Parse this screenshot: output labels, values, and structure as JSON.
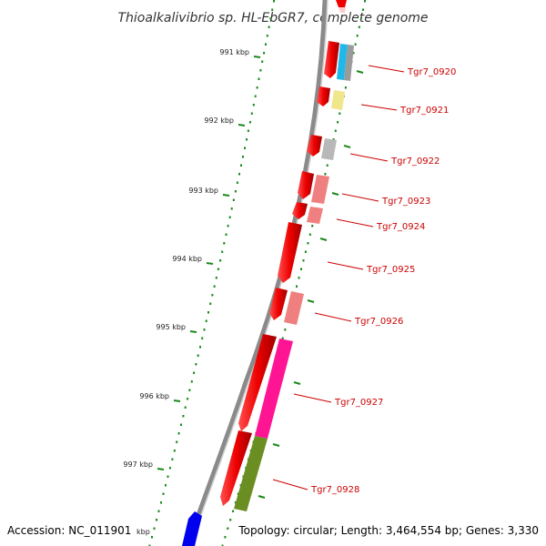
{
  "title": "Thioalkalivibrio sp. HL-EbGR7, complete genome",
  "kbp_ticks": [
    {
      "label": "991 kbp"
    },
    {
      "label": "992 kbp"
    },
    {
      "label": "993 kbp"
    },
    {
      "label": "994 kbp"
    },
    {
      "label": "995 kbp"
    },
    {
      "label": "996 kbp"
    },
    {
      "label": "997 kbp"
    }
  ],
  "genes": [
    {
      "label": "Tgr7_0920",
      "color": "#20b8e8"
    },
    {
      "label": "Tgr7_0921",
      "color": "#f0e68c"
    },
    {
      "label": "Tgr7_0922",
      "color": "#b8b8b8"
    },
    {
      "label": "Tgr7_0923",
      "color": "#f08080"
    },
    {
      "label": "Tgr7_0924",
      "color": "#f08080"
    },
    {
      "label": "Tgr7_0925",
      "color": "#ee0000"
    },
    {
      "label": "Tgr7_0926",
      "color": "#f08080"
    },
    {
      "label": "Tgr7_0927",
      "color": "#ff1493"
    },
    {
      "label": "Tgr7_0928",
      "color": "#6b8e23"
    }
  ],
  "colors": {
    "cds": "#ee0000",
    "label": "#cc0000",
    "gc_ticks": "#1a8a1a",
    "backbone": "#888888",
    "other_strand_gene": "#0000ee"
  },
  "footer": {
    "accession": "Accession: NC_011901",
    "topology": "Topology: circular; Length: 3,464,554 bp; Genes: 3,330"
  }
}
